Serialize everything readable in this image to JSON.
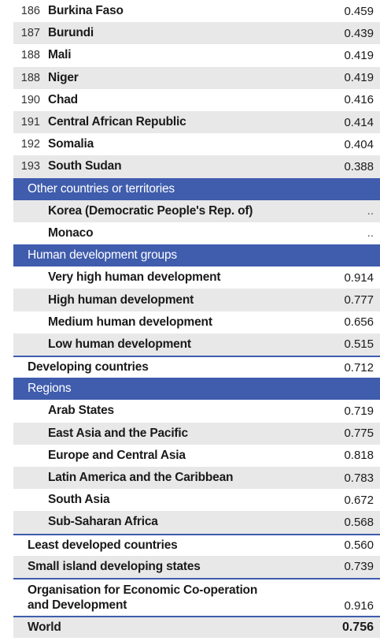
{
  "countries": [
    {
      "rank": "186",
      "name": "Burkina Faso",
      "value": "0.459"
    },
    {
      "rank": "187",
      "name": "Burundi",
      "value": "0.439"
    },
    {
      "rank": "188",
      "name": "Mali",
      "value": "0.419"
    },
    {
      "rank": "188",
      "name": "Niger",
      "value": "0.419"
    },
    {
      "rank": "190",
      "name": "Chad",
      "value": "0.416"
    },
    {
      "rank": "191",
      "name": "Central African Republic",
      "value": "0.414"
    },
    {
      "rank": "192",
      "name": "Somalia",
      "value": "0.404"
    },
    {
      "rank": "193",
      "name": "South Sudan",
      "value": "0.388"
    }
  ],
  "other_header": "Other countries or territories",
  "other": [
    {
      "name": "Korea (Democratic People's Rep. of)",
      "value": ".."
    },
    {
      "name": "Monaco",
      "value": ".."
    }
  ],
  "hd_header": "Human development groups",
  "hd_groups": [
    {
      "name": "Very high human development",
      "value": "0.914"
    },
    {
      "name": "High human development",
      "value": "0.777"
    },
    {
      "name": "Medium human development",
      "value": "0.656"
    },
    {
      "name": "Low human development",
      "value": "0.515"
    }
  ],
  "developing": {
    "name": "Developing countries",
    "value": "0.712"
  },
  "regions_header": "Regions",
  "regions": [
    {
      "name": "Arab States",
      "value": "0.719"
    },
    {
      "name": "East Asia and the Pacific",
      "value": "0.775"
    },
    {
      "name": "Europe and Central Asia",
      "value": "0.818"
    },
    {
      "name": "Latin America and the Caribbean",
      "value": "0.783"
    },
    {
      "name": "South Asia",
      "value": "0.672"
    },
    {
      "name": "Sub-Saharan Africa",
      "value": "0.568"
    }
  ],
  "ldc": {
    "name": "Least developed countries",
    "value": "0.560"
  },
  "sids": {
    "name": "Small island developing states",
    "value": "0.739"
  },
  "oecd": {
    "name_line1": "Organisation for Economic Co-operation",
    "name_line2": "and Development",
    "value": "0.916"
  },
  "world": {
    "name": "World",
    "value": "0.756"
  }
}
